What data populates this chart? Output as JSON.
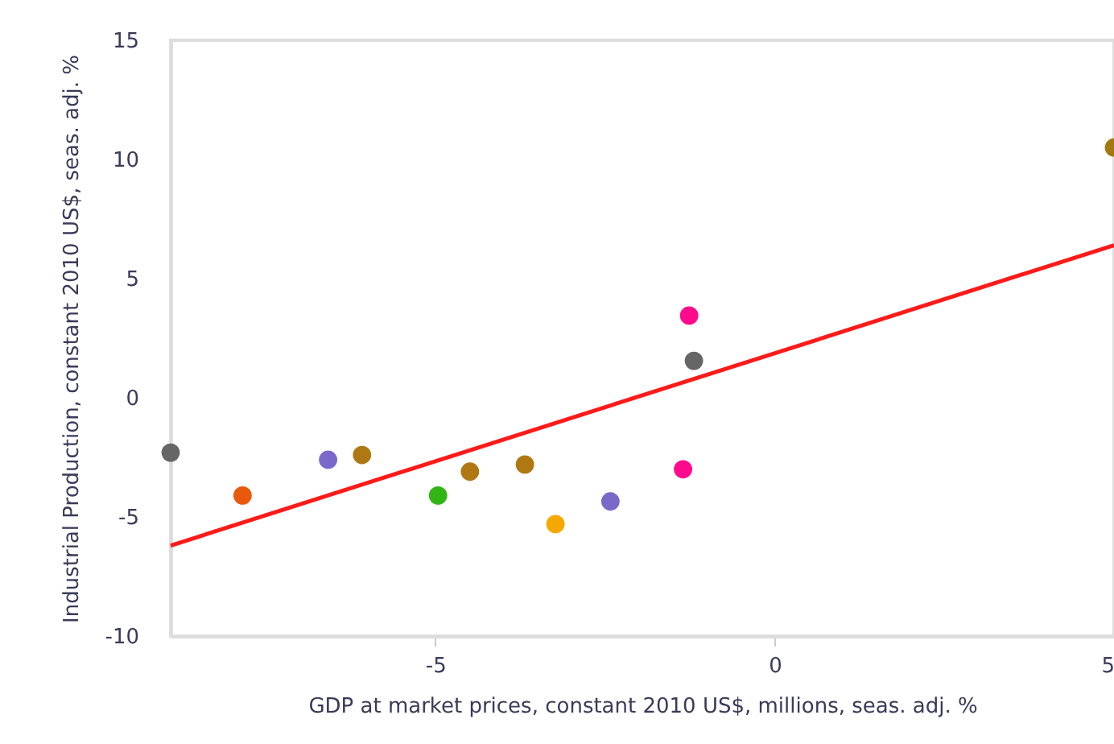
{
  "chart_data": {
    "type": "scatter",
    "xlabel": "GDP at market prices, constant 2010 US$, millions, seas. adj. %",
    "ylabel": "Industrial Production, constant 2010 US$, seas. adj. %",
    "xlim": [
      -8.9,
      5
    ],
    "ylim": [
      -10,
      15
    ],
    "xticks": [
      -5,
      0,
      5
    ],
    "yticks": [
      -10,
      -5,
      0,
      5,
      10,
      15
    ],
    "grid": false,
    "legend": false,
    "series": [
      {
        "marker": "circle",
        "x": [
          -8.9,
          -7.84,
          -6.58,
          -6.08,
          -4.96,
          -4.49,
          -3.68,
          -3.23,
          -2.42,
          -1.35,
          -1.26,
          -1.19,
          5.0
        ],
        "values": [
          -2.3,
          -4.1,
          -2.6,
          -2.4,
          -4.1,
          -3.1,
          -2.8,
          -5.3,
          -4.35,
          -3.0,
          3.45,
          1.55,
          10.5
        ],
        "colors": [
          "#666666",
          "#e8590c",
          "#7b68c8",
          "#b07812",
          "#33b515",
          "#b07812",
          "#b07812",
          "#f5a800",
          "#7b68c8",
          "#ff0a8c",
          "#ff0a8c",
          "#666666",
          "#a07a10"
        ]
      },
      {
        "type": "line",
        "x": [
          -8.9,
          5
        ],
        "values": [
          -6.2,
          6.4
        ],
        "color": "#ff1a1a",
        "line_style": "solid",
        "marker": "none"
      }
    ]
  }
}
